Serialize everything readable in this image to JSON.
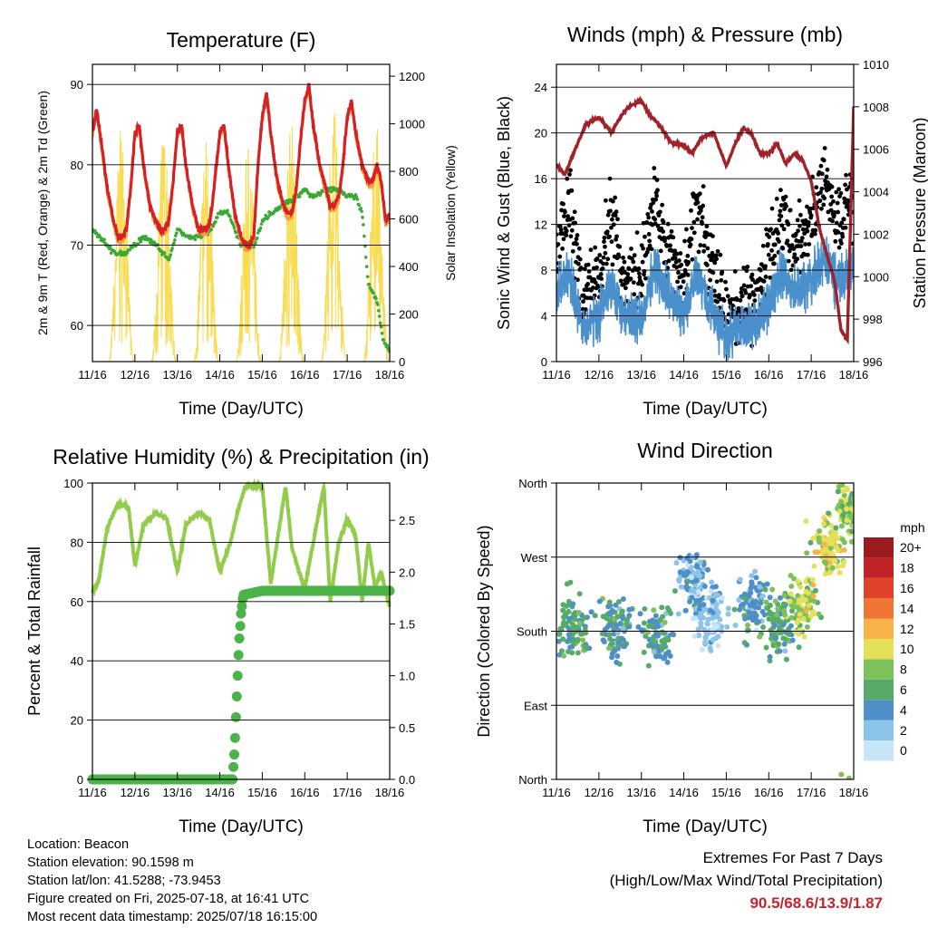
{
  "chart_data": [
    {
      "type": "line",
      "title": "Temperature (F)",
      "xlabel": "Time (Day/UTC)",
      "ylabel": "2m & 9m T (Red, Orange) & 2m Td (Green)",
      "y2label": "Solar Insolation (Yellow)",
      "x_ticks": [
        "11/16",
        "12/16",
        "13/16",
        "14/16",
        "15/16",
        "16/16",
        "17/16",
        "18/16"
      ],
      "ylim": [
        55.5,
        92.5
      ],
      "y_ticks": [
        60,
        70,
        80,
        90
      ],
      "y2lim": [
        0,
        1250
      ],
      "y2_ticks": [
        0,
        200,
        400,
        600,
        800,
        1000,
        1200
      ],
      "grid": "horizontal",
      "series": [
        {
          "name": "2m T",
          "axis": "left",
          "color": "#d62024",
          "x": [
            0,
            0.1,
            0.2,
            0.35,
            0.5,
            0.6,
            0.7,
            0.8,
            0.9,
            1.0,
            1.1,
            1.2,
            1.35,
            1.5,
            1.6,
            1.7,
            1.8,
            1.9,
            2.0,
            2.1,
            2.2,
            2.35,
            2.5,
            2.6,
            2.7,
            2.8,
            2.9,
            3.0,
            3.1,
            3.2,
            3.35,
            3.5,
            3.6,
            3.7,
            3.8,
            3.9,
            4.0,
            4.1,
            4.2,
            4.35,
            4.5,
            4.6,
            4.7,
            4.8,
            4.9,
            5.0,
            5.1,
            5.2,
            5.35,
            5.5,
            5.6,
            5.7,
            5.8,
            5.9,
            6.0,
            6.1,
            6.2,
            6.35,
            6.5,
            6.6,
            6.7,
            6.8,
            6.9,
            7.0
          ],
          "y": [
            84,
            87,
            83,
            77,
            73,
            71,
            71,
            72,
            77,
            84,
            85,
            80,
            75,
            73,
            72,
            72,
            73,
            78,
            84,
            85,
            80,
            75,
            72,
            72,
            72,
            74,
            79,
            84,
            85,
            80,
            74,
            71,
            70,
            70,
            71,
            80,
            86,
            89,
            84,
            78,
            75,
            74,
            74,
            77,
            83,
            88,
            90,
            85,
            80,
            77,
            75,
            75,
            76,
            80,
            86,
            88,
            84,
            80,
            78,
            78,
            80,
            78,
            73,
            74
          ]
        },
        {
          "name": "2m Td",
          "axis": "left",
          "color": "#3aa935",
          "x": [
            0,
            0.2,
            0.5,
            0.8,
            1.0,
            1.2,
            1.5,
            1.8,
            2.0,
            2.2,
            2.5,
            2.8,
            3.0,
            3.2,
            3.5,
            3.8,
            4.0,
            4.2,
            4.5,
            4.8,
            5.0,
            5.2,
            5.5,
            5.8,
            6.0,
            6.2,
            6.35,
            6.5,
            6.7,
            6.85,
            7.0
          ],
          "y": [
            72,
            71,
            69,
            69,
            70,
            71,
            70,
            68,
            72,
            71,
            71,
            72,
            74,
            74,
            70,
            70,
            73,
            74,
            75,
            76,
            77,
            76,
            77,
            77,
            76,
            76,
            74,
            65,
            63,
            58,
            57
          ]
        },
        {
          "name": "Solar Insolation",
          "axis": "right",
          "color": "#f7dc54",
          "day_peaks": [
            1000,
            980,
            960,
            950,
            1020,
            1070,
            1010,
            950
          ]
        }
      ]
    },
    {
      "type": "line",
      "title": "Winds (mph) & Pressure (mb)",
      "xlabel": "Time (Day/UTC)",
      "ylabel": "Sonic Wind & Gust (Blue, Black)",
      "y2label": "Station Pressure (Maroon)",
      "x_ticks": [
        "11/16",
        "12/16",
        "13/16",
        "14/16",
        "15/16",
        "16/16",
        "17/16",
        "18/16"
      ],
      "ylim": [
        0,
        26
      ],
      "y_ticks": [
        0,
        4,
        8,
        12,
        16,
        20,
        24
      ],
      "y2lim": [
        996,
        1010
      ],
      "y2_ticks": [
        996,
        998,
        1000,
        1002,
        1004,
        1006,
        1008,
        1010
      ],
      "grid": "horizontal",
      "series": [
        {
          "name": "Wind",
          "axis": "left",
          "color": "#4a90cc",
          "x": [
            0,
            0.3,
            0.6,
            1.0,
            1.3,
            1.6,
            2.0,
            2.3,
            2.6,
            3.0,
            3.3,
            3.6,
            4.0,
            4.3,
            4.6,
            5.0,
            5.3,
            5.6,
            6.0,
            6.3,
            6.6,
            7.0
          ],
          "y": [
            6,
            8,
            3,
            4,
            7,
            4,
            4,
            8,
            6,
            4,
            8,
            5,
            2,
            3,
            3,
            5,
            8,
            6,
            7,
            9,
            7,
            8
          ]
        },
        {
          "name": "Gust",
          "axis": "left",
          "color": "#000000",
          "x": [
            0,
            0.3,
            0.6,
            1.0,
            1.3,
            1.6,
            2.0,
            2.3,
            2.6,
            3.0,
            3.3,
            3.6,
            4.0,
            4.3,
            4.6,
            5.0,
            5.3,
            5.6,
            6.0,
            6.3,
            6.6,
            7.0
          ],
          "y": [
            10,
            14,
            6,
            8,
            13,
            7,
            8,
            14,
            10,
            7,
            14,
            9,
            4,
            5,
            5,
            9,
            13,
            10,
            12,
            16,
            12,
            14
          ]
        },
        {
          "name": "Station Pressure",
          "axis": "right",
          "color": "#a12228",
          "x": [
            0,
            0.2,
            0.4,
            0.7,
            1.0,
            1.3,
            1.5,
            1.7,
            2.0,
            2.2,
            2.4,
            2.7,
            3.0,
            3.2,
            3.4,
            3.7,
            4.0,
            4.2,
            4.4,
            4.6,
            4.8,
            5.0,
            5.2,
            5.4,
            5.6,
            5.8,
            6.0,
            6.2,
            6.4,
            6.55,
            6.7,
            6.85,
            7.0
          ],
          "y": [
            1005.3,
            1004.8,
            1005.8,
            1007.2,
            1007.5,
            1006.8,
            1007.5,
            1008,
            1008.3,
            1007.6,
            1007.2,
            1006.3,
            1006.2,
            1005.8,
            1006.5,
            1006.8,
            1005.2,
            1006.2,
            1007.0,
            1006.7,
            1005.8,
            1005.8,
            1006.3,
            1005.3,
            1005.8,
            1005.5,
            1004.5,
            1002.2,
            1000.8,
            999.8,
            997.5,
            997.0,
            1008.0
          ]
        }
      ]
    },
    {
      "type": "line",
      "title": "Relative Humidity (%) & Precipitation (in)",
      "xlabel": "Time (Day/UTC)",
      "ylabel": "Percent & Total Rainfall",
      "x_ticks": [
        "11/16",
        "12/16",
        "13/16",
        "14/16",
        "15/16",
        "16/16",
        "17/16",
        "18/16"
      ],
      "ylim": [
        0,
        100
      ],
      "y_ticks": [
        0,
        20,
        40,
        60,
        80,
        100
      ],
      "y2lim": [
        0,
        2.86
      ],
      "y2_ticks": [
        "0.0",
        "0.5",
        "1.0",
        "1.5",
        "2.0",
        "2.5"
      ],
      "grid": "horizontal",
      "series": [
        {
          "name": "Relative Humidity",
          "axis": "left",
          "color": "#93cc4a",
          "x": [
            0,
            0.15,
            0.35,
            0.6,
            0.85,
            1.0,
            1.2,
            1.5,
            1.75,
            2.0,
            2.2,
            2.5,
            2.75,
            3.0,
            3.25,
            3.45,
            3.6,
            3.8,
            4.0,
            4.2,
            4.4,
            4.55,
            4.7,
            5.0,
            5.2,
            5.45,
            5.6,
            5.8,
            6.0,
            6.2,
            6.35,
            6.5,
            6.65,
            6.8,
            7.0
          ],
          "y": [
            63,
            67,
            85,
            93,
            92,
            72,
            86,
            90,
            88,
            70,
            86,
            90,
            88,
            70,
            80,
            92,
            99,
            99,
            99,
            66,
            85,
            99,
            78,
            64,
            80,
            99,
            60,
            80,
            88,
            82,
            60,
            80,
            65,
            70,
            58
          ]
        },
        {
          "name": "Total Precipitation",
          "axis": "right",
          "color": "#4cb348",
          "x": [
            0,
            1,
            2,
            3,
            3.3,
            3.35,
            3.4,
            3.45,
            3.5,
            3.55,
            4,
            5,
            6,
            7
          ],
          "y": [
            0,
            0,
            0,
            0,
            0,
            0.3,
            0.8,
            1.3,
            1.6,
            1.78,
            1.82,
            1.82,
            1.82,
            1.82
          ]
        }
      ]
    },
    {
      "type": "scatter",
      "title": "Wind Direction",
      "xlabel": "Time (Day/UTC)",
      "ylabel": "Direction (Colored By Speed)",
      "x_ticks": [
        "11/16",
        "12/16",
        "13/16",
        "14/16",
        "15/16",
        "16/16",
        "17/16",
        "18/16"
      ],
      "y_ticks": [
        "North",
        "East",
        "South",
        "West",
        "North"
      ],
      "ylim": [
        0,
        360
      ],
      "grid": "horizontal",
      "colorbar": {
        "title": "mph",
        "labels": [
          "0",
          "2",
          "4",
          "6",
          "8",
          "10",
          "12",
          "14",
          "16",
          "18",
          "20+"
        ],
        "colors": [
          "#c6e6f7",
          "#8cc3e8",
          "#4f8fc8",
          "#57ab68",
          "#7ec05a",
          "#e4e05a",
          "#f7b24a",
          "#ee7533",
          "#df4129",
          "#c22326",
          "#9b1c1f"
        ]
      },
      "clusters": [
        {
          "day": 0.4,
          "dir": 190,
          "speed": 6
        },
        {
          "day": 1.4,
          "dir": 180,
          "speed": 5
        },
        {
          "day": 2.4,
          "dir": 175,
          "speed": 5
        },
        {
          "day": 3.2,
          "dir": 240,
          "speed": 3
        },
        {
          "day": 3.6,
          "dir": 200,
          "speed": 2
        },
        {
          "day": 4.6,
          "dir": 210,
          "speed": 4
        },
        {
          "day": 5.3,
          "dir": 190,
          "speed": 6
        },
        {
          "day": 5.8,
          "dir": 210,
          "speed": 9
        },
        {
          "day": 6.4,
          "dir": 280,
          "speed": 10
        },
        {
          "day": 6.9,
          "dir": 330,
          "speed": 8
        }
      ]
    }
  ],
  "info": {
    "location": "Location: Beacon",
    "elevation": "Station elevation: 90.1598 m",
    "latlon": "Station lat/lon: 41.5288; -73.9453",
    "created": "Figure created on Fri, 2025-07-18, at 16:41 UTC",
    "recent": "Most recent data timestamp: 2025/07/18 16:15:00"
  },
  "extremes": {
    "line1": "Extremes For Past 7 Days",
    "line2": "(High/Low/Max Wind/Total Precipitation)",
    "values": "90.5/68.6/13.9/1.87"
  }
}
